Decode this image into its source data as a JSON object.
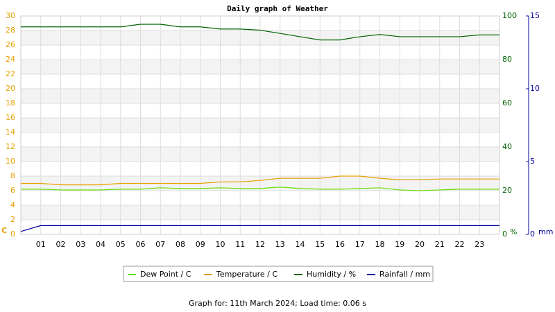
{
  "chart_data": {
    "type": "line",
    "title": "Daily graph of Weather",
    "footer": "Graph for: 11th March 2024; Load time: 0.06 s",
    "y_label": "C",
    "y2_label": "%",
    "y3_label": "mm",
    "y_color": "#e8a000",
    "y2_color": "#006400",
    "y3_color": "#00009c",
    "grid": true,
    "xlim": [
      0,
      24
    ],
    "xticks": [
      {
        "value": 1,
        "label": "01"
      },
      {
        "value": 2,
        "label": "02"
      },
      {
        "value": 3,
        "label": "03"
      },
      {
        "value": 4,
        "label": "04"
      },
      {
        "value": 5,
        "label": "05"
      },
      {
        "value": 6,
        "label": "06"
      },
      {
        "value": 7,
        "label": "07"
      },
      {
        "value": 8,
        "label": "08"
      },
      {
        "value": 9,
        "label": "09"
      },
      {
        "value": 10,
        "label": "10"
      },
      {
        "value": 11,
        "label": "11"
      },
      {
        "value": 12,
        "label": "12"
      },
      {
        "value": 13,
        "label": "13"
      },
      {
        "value": 14,
        "label": "14"
      },
      {
        "value": 15,
        "label": "15"
      },
      {
        "value": 16,
        "label": "16"
      },
      {
        "value": 17,
        "label": "17"
      },
      {
        "value": 18,
        "label": "18"
      },
      {
        "value": 19,
        "label": "19"
      },
      {
        "value": 20,
        "label": "20"
      },
      {
        "value": 21,
        "label": "21"
      },
      {
        "value": 22,
        "label": "22"
      },
      {
        "value": 23,
        "label": "23"
      }
    ],
    "ylim": [
      0,
      30
    ],
    "yticks": [
      0,
      2,
      4,
      6,
      8,
      10,
      12,
      14,
      16,
      18,
      20,
      22,
      24,
      26,
      28,
      30
    ],
    "y2lim": [
      0,
      100
    ],
    "y2ticks": [
      0,
      20,
      40,
      60,
      80,
      100
    ],
    "y3lim": [
      0,
      15
    ],
    "y3ticks": [
      0,
      5,
      10,
      15
    ],
    "x": [
      0,
      1,
      2,
      3,
      4,
      5,
      6,
      7,
      8,
      9,
      10,
      11,
      12,
      13,
      14,
      15,
      16,
      17,
      18,
      19,
      20,
      21,
      22,
      23,
      24
    ],
    "series": [
      {
        "name": "Dew Point / C",
        "color": "#66dd00",
        "axis": "y",
        "values": [
          6.2,
          6.2,
          6.1,
          6.1,
          6.1,
          6.2,
          6.2,
          6.4,
          6.3,
          6.3,
          6.4,
          6.3,
          6.3,
          6.5,
          6.3,
          6.2,
          6.2,
          6.3,
          6.4,
          6.1,
          6.0,
          6.1,
          6.2,
          6.2,
          6.2
        ]
      },
      {
        "name": "Temperature / C",
        "color": "#e8a000",
        "axis": "y",
        "values": [
          7.0,
          7.0,
          6.8,
          6.8,
          6.8,
          7.0,
          7.0,
          7.0,
          7.0,
          7.0,
          7.2,
          7.2,
          7.4,
          7.7,
          7.7,
          7.7,
          8.0,
          8.0,
          7.7,
          7.5,
          7.5,
          7.6,
          7.6,
          7.6,
          7.6
        ]
      },
      {
        "name": "Humidity / %",
        "color": "#006400",
        "axis": "y2",
        "values": [
          95,
          95,
          95,
          95,
          95,
          95,
          96.2,
          96.2,
          95,
          95,
          94,
          94,
          93.5,
          92,
          90.5,
          89,
          89,
          90.5,
          91.5,
          90.5,
          90.5,
          90.5,
          90.5,
          91.3,
          91.3
        ]
      },
      {
        "name": "Rainfall / mm",
        "color": "#00009c",
        "axis": "y3",
        "values": [
          0.2,
          0.6,
          0.6,
          0.6,
          0.6,
          0.6,
          0.6,
          0.6,
          0.6,
          0.6,
          0.6,
          0.6,
          0.6,
          0.6,
          0.6,
          0.6,
          0.6,
          0.6,
          0.6,
          0.6,
          0.6,
          0.6,
          0.6,
          0.6,
          0.6
        ]
      }
    ]
  }
}
